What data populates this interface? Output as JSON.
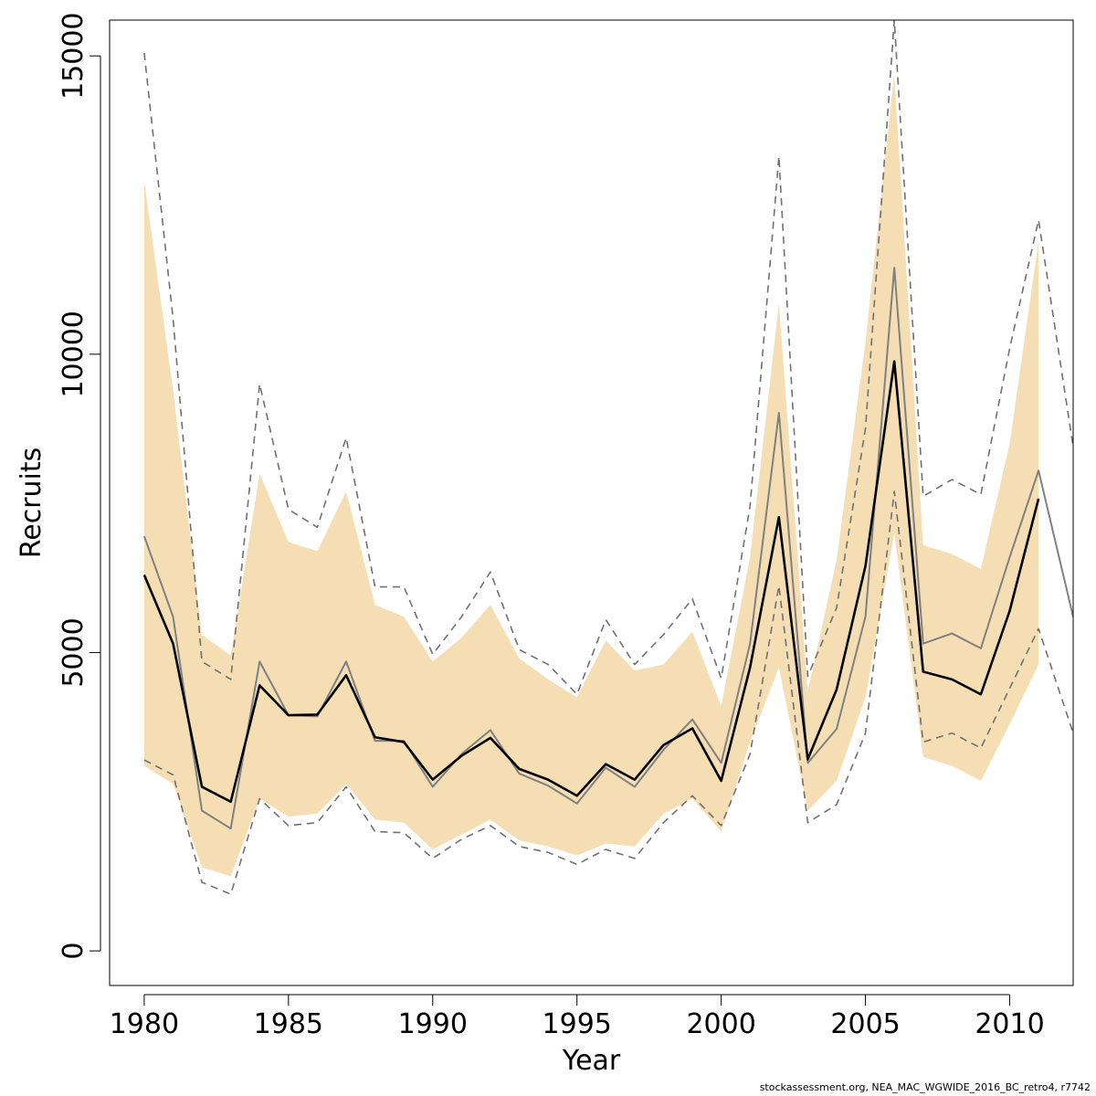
{
  "chart_data": {
    "type": "line",
    "title": "",
    "xlabel": "Year",
    "ylabel": "Recruits",
    "xlim": [
      1978.8,
      2012.2
    ],
    "ylim": [
      -580,
      15600
    ],
    "x_ticks": [
      1980,
      1985,
      1990,
      1995,
      2000,
      2005,
      2010
    ],
    "y_ticks": [
      0,
      5000,
      10000,
      15000
    ],
    "grid": false,
    "band_color": "#f5deb3",
    "series": [
      {
        "style": "confidence-band",
        "x": [
          1980,
          1981,
          1982,
          1983,
          1984,
          1985,
          1986,
          1987,
          1988,
          1989,
          1990,
          1991,
          1992,
          1993,
          1994,
          1995,
          1996,
          1997,
          1998,
          1999,
          2000,
          2001,
          2002,
          2003,
          2004,
          2005,
          2006,
          2007,
          2008,
          2009,
          2010,
          2011
        ],
        "upper": [
          12900,
          9400,
          5300,
          4950,
          8000,
          6850,
          6700,
          7700,
          5800,
          5600,
          4850,
          5250,
          5800,
          4900,
          4550,
          4250,
          5200,
          4700,
          4800,
          5350,
          4100,
          6600,
          10850,
          4350,
          6550,
          10200,
          14700,
          6800,
          6650,
          6400,
          8500,
          11900
        ],
        "lower": [
          3100,
          2800,
          1400,
          1250,
          2550,
          2250,
          2300,
          2800,
          2200,
          2150,
          1700,
          1950,
          2200,
          1850,
          1750,
          1600,
          1800,
          1750,
          2300,
          2550,
          2000,
          3500,
          4750,
          2350,
          2850,
          4250,
          7000,
          3250,
          3100,
          2850,
          3800,
          4800
        ]
      },
      {
        "style": "black-solid",
        "x": [
          1980,
          1981,
          1982,
          1983,
          1984,
          1985,
          1986,
          1987,
          1988,
          1989,
          1990,
          1991,
          1992,
          1993,
          1994,
          1995,
          1996,
          1997,
          1998,
          1999,
          2000,
          2001,
          2002,
          2003,
          2004,
          2005,
          2006,
          2007,
          2008,
          2009,
          2010,
          2011
        ],
        "values": [
          6300,
          5150,
          2750,
          2500,
          4450,
          3950,
          3960,
          4620,
          3580,
          3500,
          2870,
          3270,
          3570,
          3050,
          2870,
          2600,
          3130,
          2870,
          3450,
          3730,
          2850,
          4750,
          7270,
          3210,
          4380,
          6450,
          9880,
          4680,
          4550,
          4300,
          5700,
          7580
        ]
      },
      {
        "style": "grey-solid",
        "x": [
          1980,
          1981,
          1982,
          1983,
          1984,
          1985,
          1986,
          1987,
          1988,
          1989,
          1990,
          1991,
          1992,
          1993,
          1994,
          1995,
          1996,
          1997,
          1998,
          1999,
          2000,
          2001,
          2002,
          2003,
          2004,
          2005,
          2006,
          2007,
          2008,
          2009,
          2010,
          2011,
          2012.2
        ],
        "values": [
          6950,
          5600,
          2350,
          2050,
          4850,
          3950,
          3930,
          4850,
          3520,
          3520,
          2750,
          3300,
          3700,
          2970,
          2770,
          2470,
          3070,
          2750,
          3370,
          3880,
          3150,
          5150,
          9020,
          3150,
          3720,
          5600,
          11450,
          5150,
          5320,
          5070,
          6600,
          8050,
          5600
        ]
      },
      {
        "style": "grey-dashed-upper",
        "x": [
          1980,
          1981,
          1982,
          1983,
          1984,
          1985,
          1986,
          1987,
          1988,
          1989,
          1990,
          1991,
          1992,
          1993,
          1994,
          1995,
          1996,
          1997,
          1998,
          1999,
          2000,
          2001,
          2002,
          2003,
          2004,
          2005,
          2006,
          2007,
          2008,
          2009,
          2010,
          2011,
          2012.2
        ],
        "values": [
          15050,
          10600,
          4850,
          4550,
          9500,
          7400,
          7100,
          8600,
          6100,
          6100,
          4970,
          5600,
          6350,
          5050,
          4800,
          4300,
          5550,
          4800,
          5300,
          5900,
          4570,
          7450,
          13320,
          4600,
          5750,
          8750,
          15600,
          7620,
          7900,
          7650,
          10100,
          12250,
          8450
        ]
      },
      {
        "style": "grey-dashed-lower",
        "x": [
          1980,
          1981,
          1982,
          1983,
          1984,
          1985,
          1986,
          1987,
          1988,
          1989,
          1990,
          1991,
          1992,
          1993,
          1994,
          1995,
          1996,
          1997,
          1998,
          1999,
          2000,
          2001,
          2002,
          2003,
          2004,
          2005,
          2006,
          2007,
          2008,
          2009,
          2010,
          2011,
          2012.2
        ],
        "values": [
          3200,
          2950,
          1150,
          950,
          2550,
          2100,
          2150,
          2750,
          2000,
          1980,
          1550,
          1870,
          2100,
          1750,
          1650,
          1450,
          1700,
          1550,
          2150,
          2600,
          2100,
          3300,
          6120,
          2150,
          2450,
          3650,
          7700,
          3500,
          3650,
          3400,
          4400,
          5400,
          3650
        ]
      }
    ],
    "footnote": "stockassessment.org, NEA_MAC_WGWIDE_2016_BC_retro4, r7742"
  }
}
